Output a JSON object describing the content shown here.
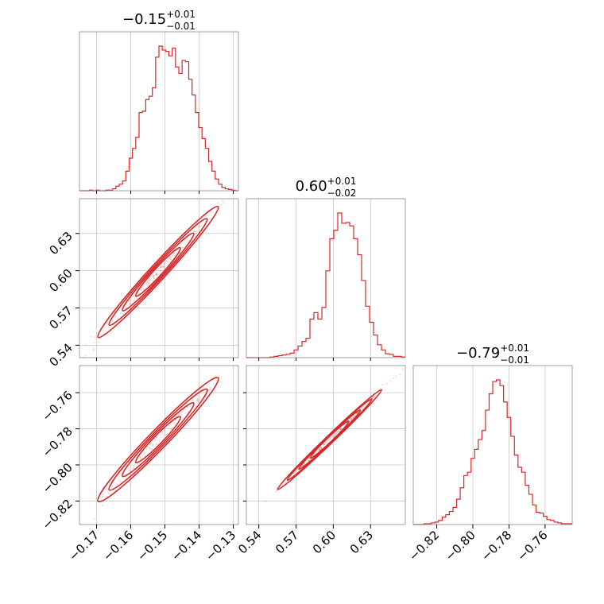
{
  "chart_data": {
    "type": "corner",
    "color": "#d62728",
    "grid": true,
    "parameters": [
      {
        "title_main": "−0.15",
        "title_sup": "+0.01",
        "title_sub": "−0.01",
        "range": [
          -0.175,
          -0.1285
        ],
        "ticks": [
          -0.17,
          -0.16,
          -0.15,
          -0.14,
          -0.13
        ],
        "tick_labels": [
          "−0.17",
          "−0.16",
          "−0.15",
          "−0.14",
          "−0.13"
        ]
      },
      {
        "title_main": "0.60",
        "title_sup": "+0.01",
        "title_sub": "−0.02",
        "range": [
          0.53,
          0.658
        ],
        "ticks": [
          0.54,
          0.57,
          0.6,
          0.63
        ],
        "tick_labels": [
          "0.54",
          "0.57",
          "0.60",
          "0.63"
        ]
      },
      {
        "title_main": "−0.79",
        "title_sup": "+0.01",
        "title_sub": "−0.01",
        "range": [
          -0.833,
          -0.745
        ],
        "ticks": [
          -0.82,
          -0.8,
          -0.78,
          -0.76
        ],
        "tick_labels": [
          "−0.82",
          "−0.80",
          "−0.78",
          "−0.76"
        ]
      }
    ],
    "histograms": [
      {
        "param": 0,
        "bins": [
          -0.175,
          -0.1285
        ],
        "counts": [
          0,
          0,
          0,
          1,
          0,
          1,
          0,
          0,
          1,
          1,
          3,
          7,
          10,
          15,
          30,
          50,
          65,
          82,
          120,
          122,
          140,
          145,
          158,
          205,
          222,
          216,
          214,
          207,
          219,
          190,
          180,
          200,
          198,
          171,
          147,
          120,
          97,
          80,
          65,
          45,
          30,
          18,
          10,
          5,
          3,
          2,
          1,
          0
        ]
      },
      {
        "param": 1,
        "bins": [
          0.53,
          0.658
        ],
        "counts": [
          0,
          0,
          0,
          0,
          0,
          0,
          1,
          2,
          3,
          4,
          5,
          7,
          12,
          18,
          25,
          30,
          60,
          70,
          60,
          78,
          135,
          185,
          198,
          225,
          209,
          210,
          205,
          185,
          160,
          120,
          80,
          55,
          35,
          20,
          12,
          6,
          5,
          2,
          2,
          1
        ]
      },
      {
        "param": 2,
        "bins": [
          -0.833,
          -0.745
        ],
        "counts": [
          0,
          0,
          0,
          1,
          1,
          2,
          3,
          5,
          9,
          12,
          16,
          21,
          31,
          45,
          60,
          64,
          81,
          92,
          104,
          115,
          140,
          160,
          175,
          177,
          170,
          150,
          131,
          108,
          85,
          70,
          64,
          48,
          37,
          24,
          15,
          14,
          10,
          6,
          5,
          3,
          2,
          1,
          1,
          1
        ]
      }
    ],
    "scatter_pairs": [
      {
        "x_param": 0,
        "y_param": 1,
        "slope": 3.0,
        "x_center": -0.152,
        "y_center": 0.599,
        "x_sd": 0.0065,
        "noise": 0.0035,
        "n": 180
      },
      {
        "x_param": 0,
        "y_param": 2,
        "slope": 1.95,
        "x_center": -0.152,
        "y_center": -0.786,
        "x_sd": 0.0065,
        "noise": 0.0028,
        "n": 180
      },
      {
        "x_param": 1,
        "y_param": 2,
        "slope": 0.66,
        "x_center": 0.597,
        "y_center": -0.786,
        "x_sd": 0.0155,
        "noise": 0.0008,
        "n": 180
      }
    ]
  }
}
